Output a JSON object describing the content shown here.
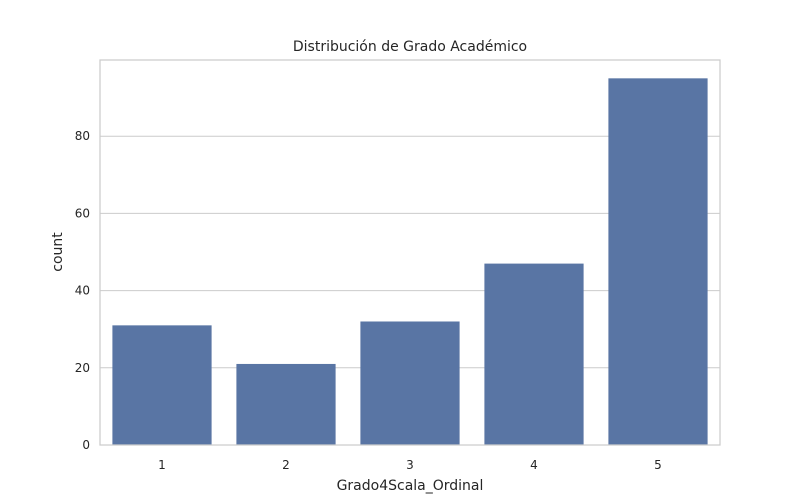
{
  "chart_data": {
    "type": "bar",
    "title": "Distribución de Grado Académico",
    "xlabel": "Grado4Scala_Ordinal",
    "ylabel": "count",
    "categories": [
      "1",
      "2",
      "3",
      "4",
      "5"
    ],
    "values": [
      31,
      21,
      32,
      47,
      95
    ],
    "ylim": [
      0,
      99.75
    ],
    "yticks": [
      "0",
      "20",
      "40",
      "60",
      "80"
    ],
    "grid": "horizontal",
    "bar_color": "#5975a4",
    "grid_color": "#cccccc",
    "axes_edge_color": "#cccccc"
  }
}
